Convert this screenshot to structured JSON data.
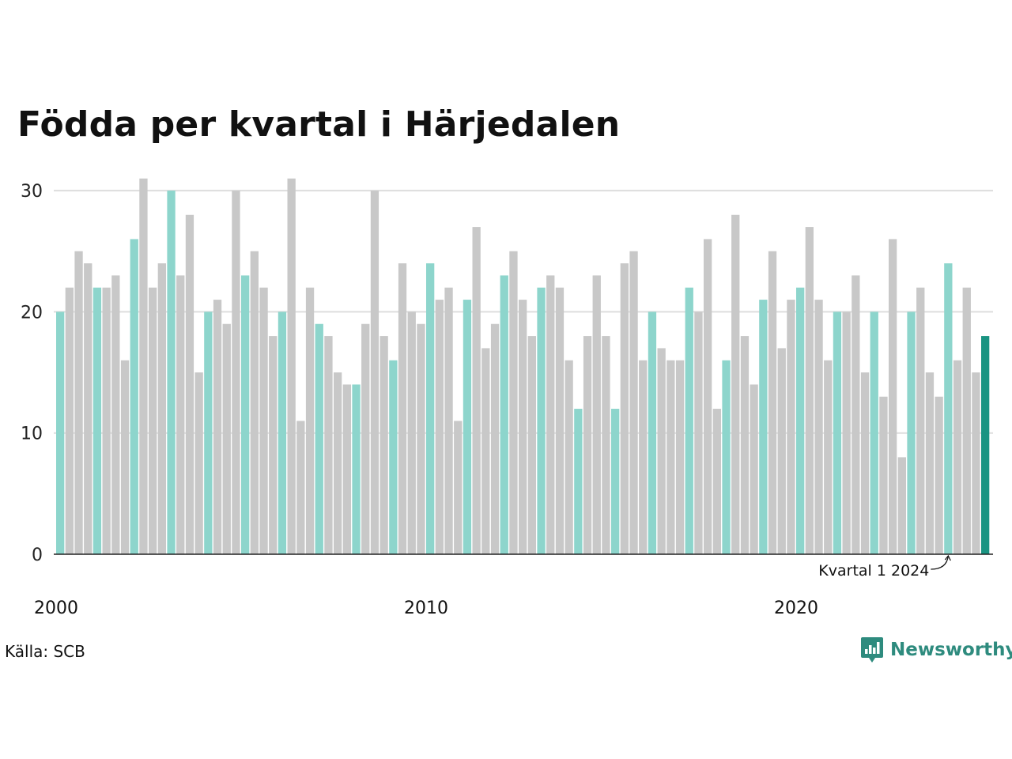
{
  "chart_data": {
    "type": "bar",
    "title": "Födda per kvartal i Härjedalen",
    "source": "Källa: SCB",
    "brand": "Newsworthy",
    "annotation": "Kvartal 1 2024",
    "ylim": [
      0,
      30
    ],
    "yticks": [
      "0",
      "10",
      "20",
      "30"
    ],
    "xticks": [
      "2000",
      "2010",
      "2020"
    ],
    "grid": true,
    "start_year": 2000,
    "colors": {
      "q1": "#8dd5cc",
      "other": "#c8c8c8",
      "latest": "#1a9482",
      "grid": "#dddddd",
      "axis": "#222222",
      "logo": "#2e8b7e"
    },
    "values": [
      20,
      22,
      25,
      24,
      22,
      22,
      23,
      16,
      26,
      31,
      22,
      24,
      30,
      23,
      28,
      15,
      20,
      21,
      19,
      30,
      23,
      25,
      22,
      18,
      20,
      31,
      11,
      22,
      19,
      18,
      15,
      14,
      14,
      19,
      30,
      18,
      16,
      24,
      20,
      19,
      24,
      21,
      22,
      11,
      21,
      27,
      17,
      19,
      23,
      25,
      21,
      18,
      22,
      23,
      22,
      16,
      12,
      18,
      23,
      18,
      12,
      24,
      25,
      16,
      20,
      17,
      16,
      16,
      22,
      20,
      26,
      12,
      16,
      28,
      18,
      14,
      21,
      25,
      17,
      21,
      22,
      27,
      21,
      16,
      20,
      20,
      23,
      15,
      20,
      13,
      26,
      8,
      20,
      22,
      15,
      13,
      24,
      16,
      22,
      15,
      18
    ]
  }
}
